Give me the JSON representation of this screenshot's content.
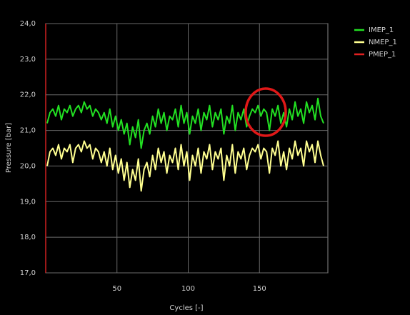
{
  "chart_data": {
    "type": "line",
    "xlabel": "Cycles [-]",
    "ylabel": "Pressure [bar]",
    "x": [
      1,
      3,
      5,
      7,
      9,
      11,
      13,
      15,
      17,
      19,
      21,
      23,
      25,
      27,
      29,
      31,
      33,
      35,
      37,
      39,
      41,
      43,
      45,
      47,
      49,
      51,
      53,
      55,
      57,
      59,
      61,
      63,
      65,
      67,
      69,
      71,
      73,
      75,
      77,
      79,
      81,
      83,
      85,
      87,
      89,
      91,
      93,
      95,
      97,
      99,
      101,
      103,
      105,
      107,
      109,
      111,
      113,
      115,
      117,
      119,
      121,
      123,
      125,
      127,
      129,
      131,
      133,
      135,
      137,
      139,
      141,
      143,
      145,
      147,
      149,
      151,
      153,
      155,
      157,
      159,
      161,
      163,
      165,
      167,
      169,
      171,
      173,
      175,
      177,
      179,
      181,
      183,
      185,
      187,
      189,
      191,
      193,
      195
    ],
    "series": [
      {
        "name": "IMEP_1",
        "color": "#22e022",
        "values": [
          21.2,
          21.5,
          21.6,
          21.4,
          21.7,
          21.3,
          21.6,
          21.5,
          21.7,
          21.4,
          21.6,
          21.7,
          21.5,
          21.8,
          21.6,
          21.7,
          21.4,
          21.6,
          21.5,
          21.3,
          21.5,
          21.2,
          21.6,
          21.1,
          21.4,
          21.0,
          21.3,
          20.9,
          21.2,
          20.6,
          21.1,
          20.8,
          21.3,
          20.5,
          21.0,
          21.2,
          20.9,
          21.4,
          21.1,
          21.6,
          21.2,
          21.5,
          21.0,
          21.4,
          21.3,
          21.6,
          21.1,
          21.7,
          21.2,
          21.5,
          20.9,
          21.4,
          21.2,
          21.6,
          21.0,
          21.5,
          21.3,
          21.7,
          21.1,
          21.5,
          21.3,
          21.6,
          20.9,
          21.4,
          21.2,
          21.7,
          21.0,
          21.5,
          21.3,
          21.6,
          21.1,
          21.4,
          21.6,
          21.5,
          21.7,
          21.4,
          21.6,
          21.5,
          21.0,
          21.6,
          21.4,
          21.7,
          21.2,
          21.5,
          21.1,
          21.6,
          21.3,
          21.8,
          21.4,
          21.6,
          21.2,
          21.8,
          21.5,
          21.7,
          21.3,
          21.9,
          21.4,
          21.2
        ]
      },
      {
        "name": "NMEP_1",
        "color": "#ffff90",
        "values": [
          20.0,
          20.4,
          20.5,
          20.3,
          20.6,
          20.2,
          20.5,
          20.4,
          20.6,
          20.1,
          20.5,
          20.6,
          20.4,
          20.7,
          20.5,
          20.6,
          20.2,
          20.5,
          20.4,
          20.1,
          20.4,
          20.0,
          20.5,
          19.9,
          20.3,
          19.8,
          20.2,
          19.6,
          20.1,
          19.4,
          19.9,
          19.6,
          20.2,
          19.3,
          19.9,
          20.1,
          19.7,
          20.3,
          19.9,
          20.5,
          20.1,
          20.4,
          19.8,
          20.3,
          20.1,
          20.5,
          19.9,
          20.6,
          20.0,
          20.4,
          19.6,
          20.3,
          20.0,
          20.5,
          19.8,
          20.4,
          20.2,
          20.6,
          19.9,
          20.4,
          20.2,
          20.5,
          19.6,
          20.3,
          20.0,
          20.6,
          19.8,
          20.4,
          20.2,
          20.5,
          19.9,
          20.3,
          20.5,
          20.4,
          20.6,
          20.2,
          20.5,
          20.4,
          19.8,
          20.5,
          20.3,
          20.7,
          20.0,
          20.4,
          19.9,
          20.5,
          20.2,
          20.7,
          20.3,
          20.5,
          20.0,
          20.7,
          20.4,
          20.6,
          20.1,
          20.7,
          20.3,
          20.0
        ]
      },
      {
        "name": "PMEP_1",
        "color": "#e02020",
        "values": [
          null,
          null,
          null,
          null,
          null,
          null,
          null,
          null,
          null,
          null,
          null,
          null,
          null,
          null,
          null,
          null,
          null,
          null,
          null,
          null,
          null,
          null,
          null,
          null,
          null,
          null,
          null,
          null,
          null,
          null,
          null,
          null,
          null,
          null,
          null,
          null,
          null,
          null,
          null,
          null,
          null,
          null,
          null,
          null,
          null,
          null,
          null,
          null,
          null,
          null,
          null,
          null,
          null,
          null,
          null,
          null,
          null,
          null,
          null,
          null,
          null,
          null,
          null,
          null,
          null,
          null,
          null,
          null,
          null,
          null,
          null,
          null,
          null,
          null,
          null,
          null,
          null,
          null,
          null,
          null,
          null,
          null,
          null,
          null,
          null,
          null,
          null,
          null,
          null,
          null,
          null,
          null,
          null,
          null,
          null,
          null,
          null,
          null
        ]
      }
    ],
    "xlim": [
      0,
      198
    ],
    "xticks": [
      50,
      100,
      150
    ],
    "ylim": [
      17,
      24
    ],
    "yticks": [
      {
        "value": 17,
        "label": "17,0"
      },
      {
        "value": 18,
        "label": "18,0"
      },
      {
        "value": 19,
        "label": "19,0"
      },
      {
        "value": 20,
        "label": "20,0"
      },
      {
        "value": 21,
        "label": "21,0"
      },
      {
        "value": 22,
        "label": "22,0"
      },
      {
        "value": 23,
        "label": "23,0"
      },
      {
        "value": 24,
        "label": "24,0"
      }
    ],
    "grid": true,
    "legend": "right"
  }
}
